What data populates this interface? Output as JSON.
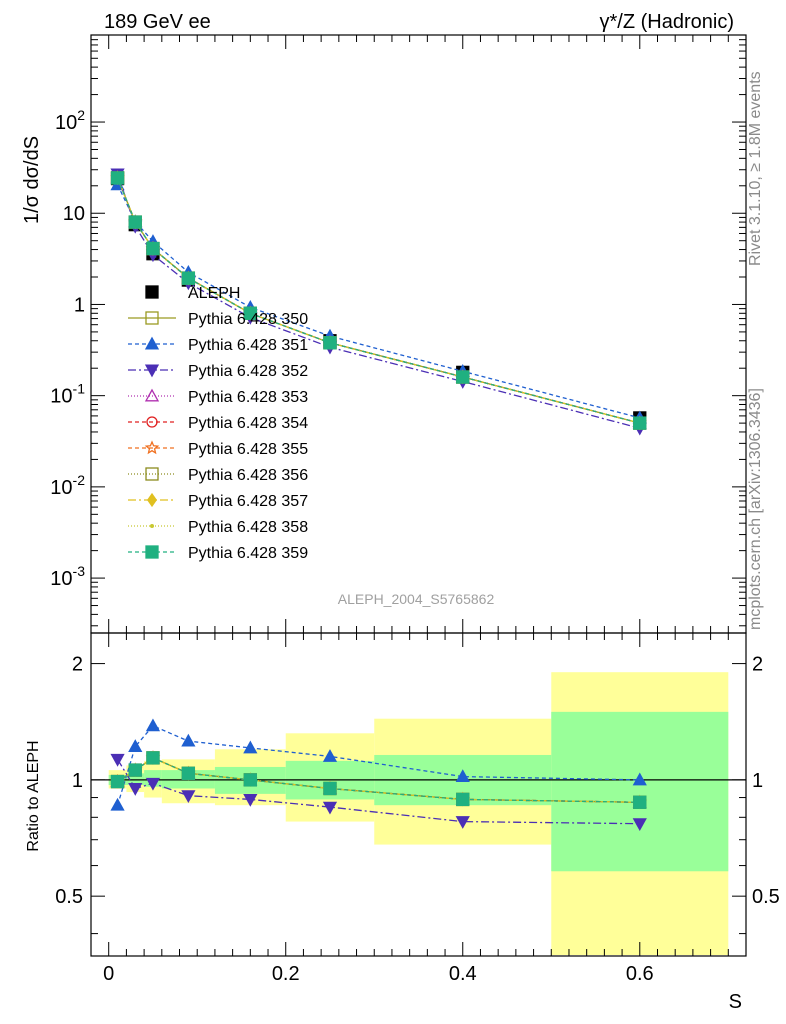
{
  "header": {
    "left_title": "189 GeV ee",
    "right_title": "γ*/Z (Hadronic)"
  },
  "side_labels": {
    "rivet": "Rivet 3.1.10, ≥ 1.8M events",
    "mcplots": "mcplots.cern.ch [arXiv:1306.3436]"
  },
  "analysis_label": "ALEPH_2004_S5765862",
  "colors": {
    "data": "#000000",
    "p350": "#9a9a22",
    "p351": "#1f5fd0",
    "p352": "#4b2fb5",
    "p353": "#b030b0",
    "p354": "#e02020",
    "p355": "#f07020",
    "p356": "#8c8c1e",
    "p357": "#e0c020",
    "p358": "#c8c830",
    "p359": "#20b080",
    "band_inner": "#99ff99",
    "band_outer": "#ffff99"
  },
  "chart_data": [
    {
      "type": "line",
      "title": "",
      "xlabel": "",
      "ylabel": "1/σ  dσ/dS",
      "yscale": "log",
      "ylim": [
        0.00025,
        900
      ],
      "xlim": [
        -0.02,
        0.72
      ],
      "y_tick_labels": [
        "10^-3",
        "10^-2",
        "10^-1",
        "1",
        "10",
        "10^2"
      ],
      "legend_position": "middle-left",
      "x": [
        0.01,
        0.03,
        0.05,
        0.09,
        0.16,
        0.25,
        0.4,
        0.6
      ],
      "series": [
        {
          "name": "ALEPH",
          "key": "data",
          "marker": "square-filled",
          "dash": "none",
          "values": [
            24,
            7.5,
            3.6,
            1.85,
            0.8,
            0.4,
            0.18,
            0.057
          ]
        },
        {
          "name": "Pythia 6.428 350",
          "key": "p350",
          "marker": "square-open",
          "dash": "solid",
          "values": [
            24.5,
            8.0,
            4.1,
            1.95,
            0.8,
            0.38,
            0.16,
            0.05
          ]
        },
        {
          "name": "Pythia 6.428 351",
          "key": "p351",
          "marker": "triangle-up-filled",
          "dash": "4,3",
          "values": [
            20.5,
            8.1,
            4.9,
            2.25,
            0.93,
            0.45,
            0.185,
            0.057
          ]
        },
        {
          "name": "Pythia 6.428 352",
          "key": "p352",
          "marker": "triangle-down-filled",
          "dash": "8,3,2,3",
          "values": [
            27.0,
            7.2,
            3.5,
            1.72,
            0.72,
            0.34,
            0.143,
            0.044
          ]
        },
        {
          "name": "Pythia 6.428 353",
          "key": "p353",
          "marker": "triangle-up-open",
          "dash": "1,2",
          "values": [
            24.4,
            8.0,
            4.1,
            1.94,
            0.8,
            0.38,
            0.16,
            0.05
          ]
        },
        {
          "name": "Pythia 6.428 354",
          "key": "p354",
          "marker": "circle-open",
          "dash": "4,3",
          "values": [
            24.4,
            8.0,
            4.1,
            1.94,
            0.8,
            0.38,
            0.16,
            0.05
          ]
        },
        {
          "name": "Pythia 6.428 355",
          "key": "p355",
          "marker": "star-open",
          "dash": "4,3",
          "values": [
            24.4,
            8.0,
            4.1,
            1.94,
            0.8,
            0.38,
            0.16,
            0.05
          ]
        },
        {
          "name": "Pythia 6.428 356",
          "key": "p356",
          "marker": "square-open",
          "dash": "1,2",
          "values": [
            24.4,
            8.0,
            4.1,
            1.94,
            0.8,
            0.38,
            0.16,
            0.05
          ]
        },
        {
          "name": "Pythia 6.428 357",
          "key": "p357",
          "marker": "diamond-filled",
          "dash": "8,3,2,3",
          "values": [
            24.4,
            8.0,
            4.1,
            1.94,
            0.8,
            0.38,
            0.16,
            0.05
          ]
        },
        {
          "name": "Pythia 6.428 358",
          "key": "p358",
          "marker": "dot",
          "dash": "1,2",
          "values": [
            24.4,
            8.0,
            4.1,
            1.94,
            0.8,
            0.38,
            0.16,
            0.05
          ]
        },
        {
          "name": "Pythia 6.428 359",
          "key": "p359",
          "marker": "square-filled",
          "dash": "4,3",
          "values": [
            24.4,
            8.0,
            4.1,
            1.94,
            0.8,
            0.38,
            0.16,
            0.05
          ]
        }
      ]
    },
    {
      "type": "line",
      "title": "",
      "xlabel": "S",
      "ylabel": "Ratio to ALEPH",
      "yscale": "log",
      "ylim": [
        0.35,
        2.4
      ],
      "xlim": [
        -0.02,
        0.72
      ],
      "x_ticks": [
        0,
        0.2,
        0.4,
        0.6
      ],
      "x_tick_labels": [
        "0",
        "0.2",
        "0.4",
        "0.6"
      ],
      "y_ticks": [
        0.5,
        1,
        2
      ],
      "y_tick_labels": [
        "0.5",
        "1",
        "2"
      ],
      "reference_line": 1,
      "uncertainty_bands": {
        "bin_edges": [
          0,
          0.02,
          0.04,
          0.06,
          0.12,
          0.2,
          0.3,
          0.5,
          0.7
        ],
        "inner": [
          [
            0.97,
            1.03
          ],
          [
            0.97,
            1.04
          ],
          [
            0.96,
            1.06
          ],
          [
            0.95,
            1.06
          ],
          [
            0.92,
            1.08
          ],
          [
            0.89,
            1.12
          ],
          [
            0.86,
            1.16
          ],
          [
            0.58,
            1.5
          ]
        ],
        "outer": [
          [
            0.95,
            1.06
          ],
          [
            0.93,
            1.09
          ],
          [
            0.9,
            1.12
          ],
          [
            0.87,
            1.13
          ],
          [
            0.86,
            1.2
          ],
          [
            0.78,
            1.32
          ],
          [
            0.68,
            1.44
          ],
          [
            0.35,
            1.9
          ]
        ]
      },
      "x": [
        0.01,
        0.03,
        0.05,
        0.09,
        0.16,
        0.25,
        0.4,
        0.6
      ],
      "series": [
        {
          "name": "Pythia 6.428 350",
          "key": "p350",
          "marker": "square-open",
          "dash": "solid",
          "values": [
            0.99,
            1.06,
            1.14,
            1.04,
            1.0,
            0.95,
            0.89,
            0.875
          ]
        },
        {
          "name": "Pythia 6.428 351",
          "key": "p351",
          "marker": "triangle-up-filled",
          "dash": "4,3",
          "values": [
            0.86,
            1.22,
            1.38,
            1.26,
            1.21,
            1.15,
            1.02,
            1.0
          ]
        },
        {
          "name": "Pythia 6.428 352",
          "key": "p352",
          "marker": "triangle-down-filled",
          "dash": "8,3,2,3",
          "values": [
            1.13,
            0.95,
            0.98,
            0.91,
            0.89,
            0.85,
            0.78,
            0.77
          ]
        },
        {
          "name": "Pythia 6.428 353",
          "key": "p353",
          "marker": "triangle-up-open",
          "dash": "1,2",
          "values": [
            0.99,
            1.06,
            1.14,
            1.04,
            1.0,
            0.95,
            0.89,
            0.875
          ]
        },
        {
          "name": "Pythia 6.428 354",
          "key": "p354",
          "marker": "circle-open",
          "dash": "4,3",
          "values": [
            0.99,
            1.06,
            1.14,
            1.04,
            1.0,
            0.95,
            0.89,
            0.875
          ]
        },
        {
          "name": "Pythia 6.428 355",
          "key": "p355",
          "marker": "star-open",
          "dash": "4,3",
          "values": [
            0.99,
            1.06,
            1.14,
            1.04,
            1.0,
            0.95,
            0.89,
            0.875
          ]
        },
        {
          "name": "Pythia 6.428 356",
          "key": "p356",
          "marker": "square-open",
          "dash": "1,2",
          "values": [
            0.99,
            1.06,
            1.14,
            1.04,
            1.0,
            0.95,
            0.89,
            0.875
          ]
        },
        {
          "name": "Pythia 6.428 357",
          "key": "p357",
          "marker": "diamond-filled",
          "dash": "8,3,2,3",
          "values": [
            0.99,
            1.06,
            1.14,
            1.04,
            1.0,
            0.95,
            0.89,
            0.875
          ]
        },
        {
          "name": "Pythia 6.428 358",
          "key": "p358",
          "marker": "dot",
          "dash": "1,2",
          "values": [
            0.99,
            1.06,
            1.14,
            1.04,
            1.0,
            0.95,
            0.89,
            0.875
          ]
        },
        {
          "name": "Pythia 6.428 359",
          "key": "p359",
          "marker": "square-filled",
          "dash": "4,3",
          "values": [
            0.99,
            1.06,
            1.14,
            1.04,
            1.0,
            0.95,
            0.89,
            0.875
          ]
        }
      ]
    }
  ]
}
